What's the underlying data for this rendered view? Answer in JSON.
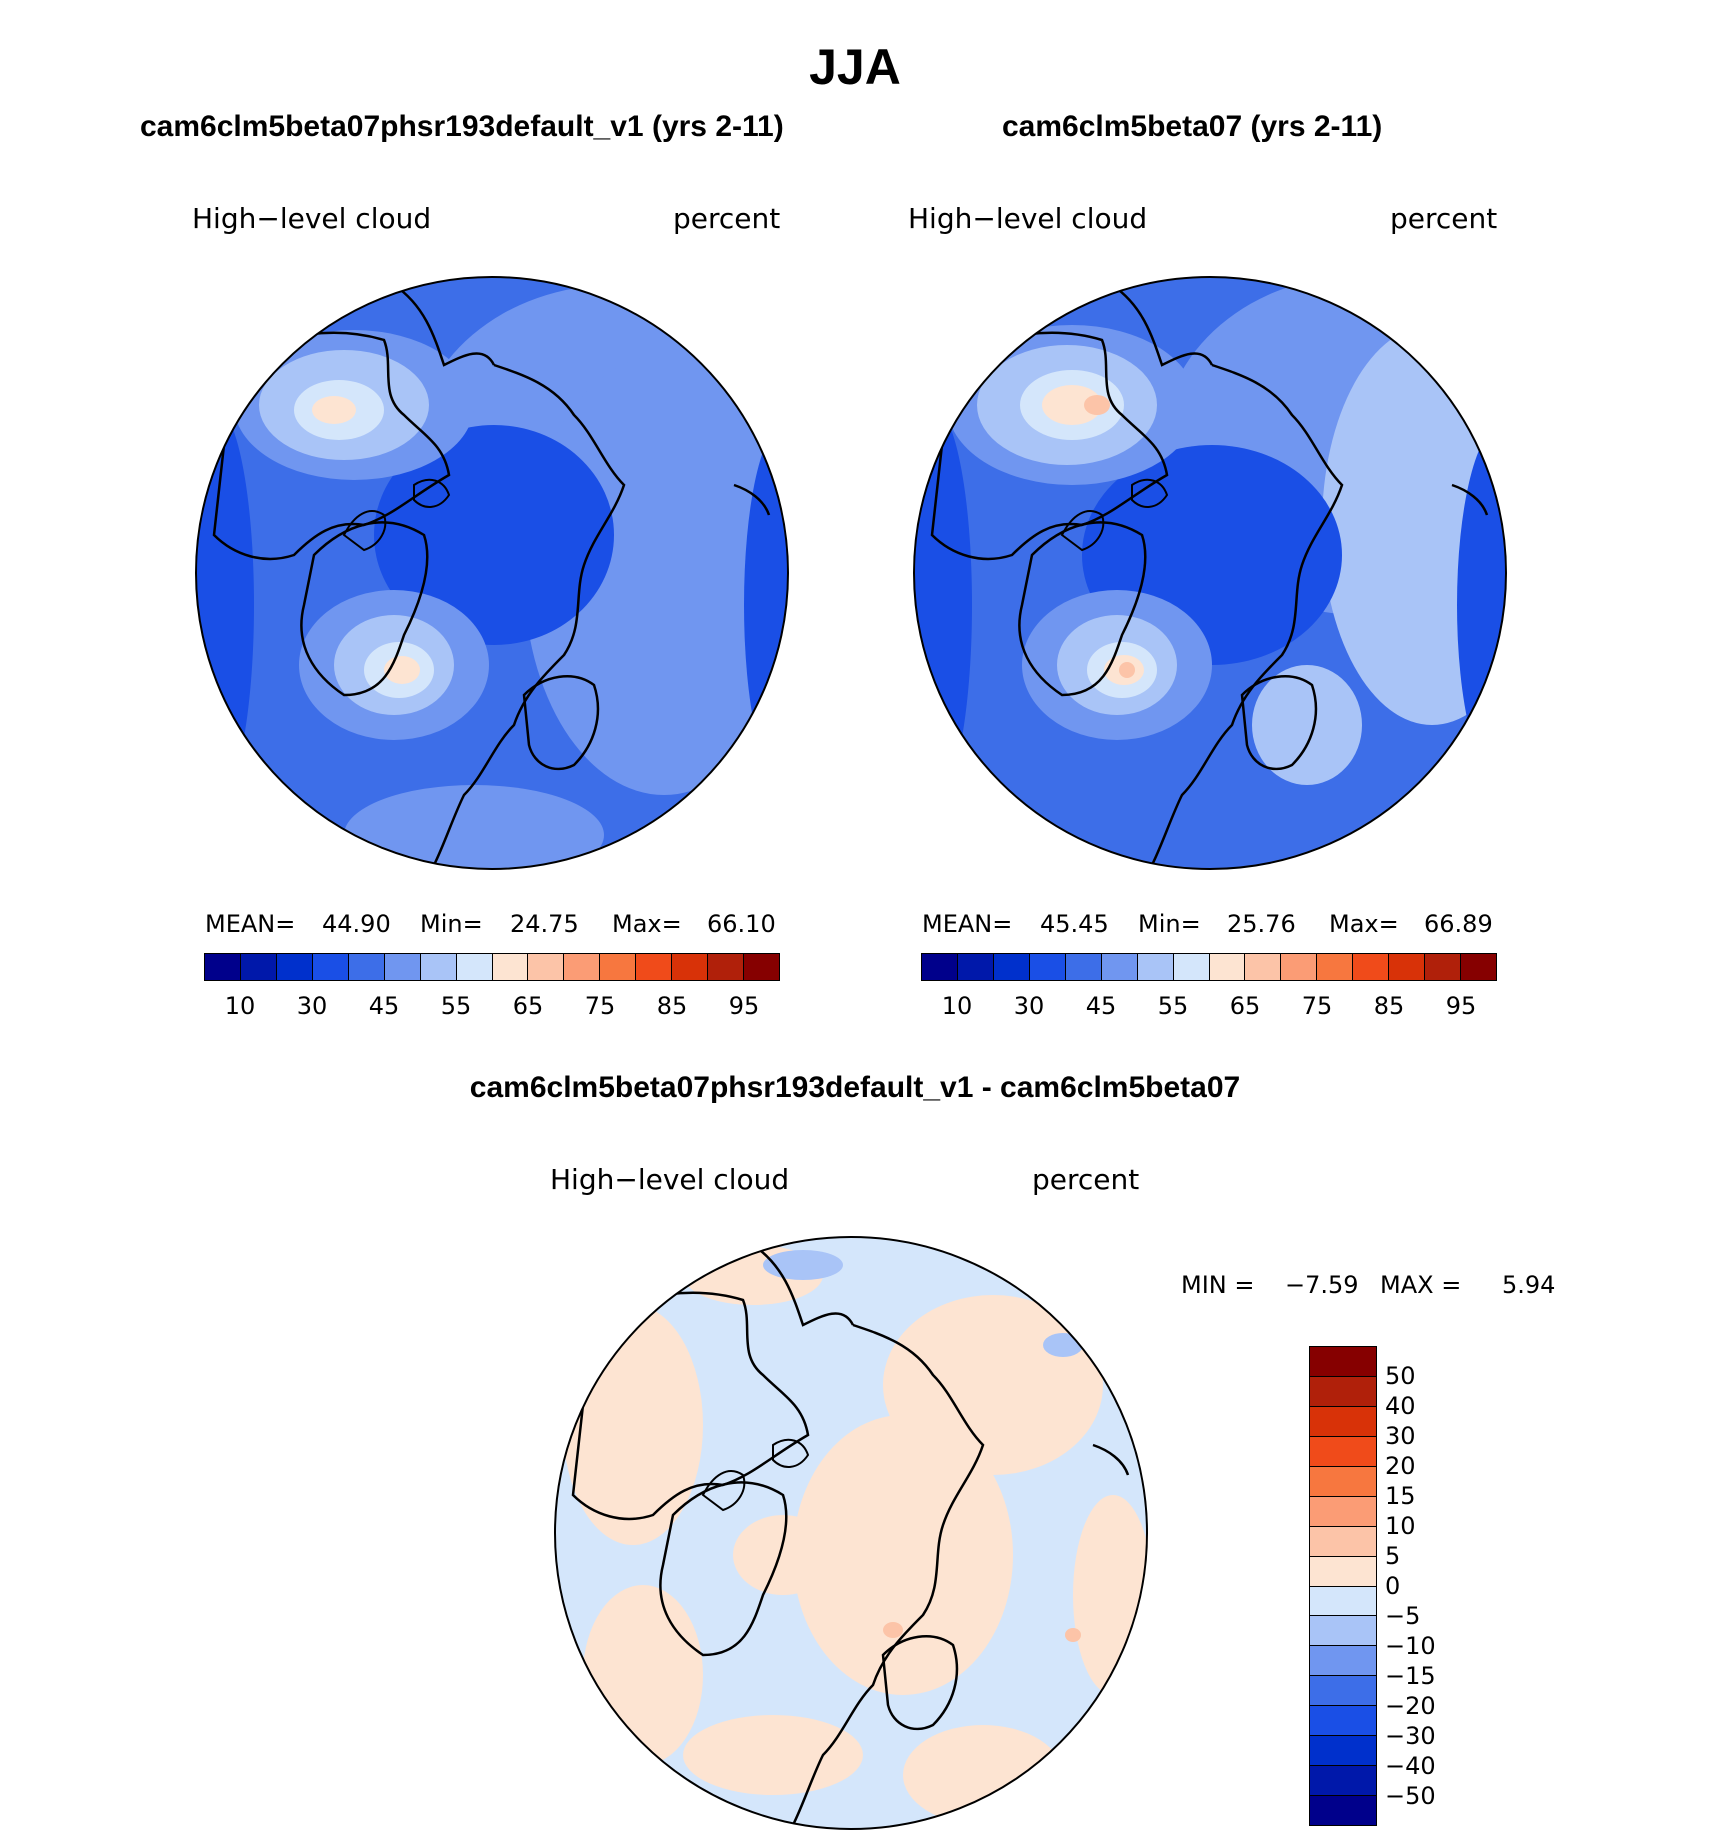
{
  "title": "JJA",
  "panels": [
    {
      "title": "cam6clm5beta07phsr193default_v1 (yrs 2-11)",
      "variable": "High−level cloud",
      "units": "percent",
      "stats": {
        "mean_label": "MEAN=",
        "mean": "44.90",
        "min_label": "Min=",
        "min": "24.75",
        "max_label": "Max=",
        "max": "66.10"
      }
    },
    {
      "title": "cam6clm5beta07 (yrs 2-11)",
      "variable": "High−level cloud",
      "units": "percent",
      "stats": {
        "mean_label": "MEAN=",
        "mean": "45.45",
        "min_label": "Min=",
        "min": "25.76",
        "max_label": "Max=",
        "max": "66.89"
      }
    }
  ],
  "abs_colorbar": {
    "colors": [
      "#00008b",
      "#0018aa",
      "#0030cc",
      "#1a4fe6",
      "#3d6ee8",
      "#7096f0",
      "#a9c4f7",
      "#d4e6fb",
      "#fde4d2",
      "#fcc4a8",
      "#fb9c75",
      "#f7773f",
      "#f04b1a",
      "#d83208",
      "#b0200a",
      "#860000"
    ],
    "tick_labels": [
      "10",
      "30",
      "45",
      "55",
      "65",
      "75",
      "85",
      "95"
    ]
  },
  "diff_panel": {
    "title": "cam6clm5beta07phsr193default_v1 - cam6clm5beta07",
    "variable": "High−level cloud",
    "units": "percent",
    "min_label": "MIN =",
    "min": "−7.59",
    "max_label": "MAX =",
    "max": "5.94"
  },
  "diff_colorbar": {
    "colors_top_to_bottom": [
      "#860000",
      "#b0200a",
      "#d83208",
      "#f04b1a",
      "#f7773f",
      "#fb9c75",
      "#fcc4a8",
      "#fde4d2",
      "#d4e6fb",
      "#a9c4f7",
      "#7096f0",
      "#3d6ee8",
      "#1a4fe6",
      "#0030cc",
      "#0018aa",
      "#00008b"
    ],
    "tick_labels": [
      "50",
      "40",
      "30",
      "20",
      "15",
      "10",
      "5",
      "0",
      "−5",
      "−10",
      "−15",
      "−20",
      "−30",
      "−40",
      "−50"
    ]
  }
}
